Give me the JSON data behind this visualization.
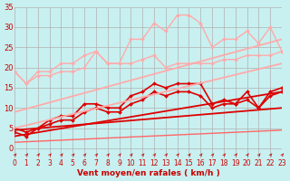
{
  "bg_color": "#c8f0f0",
  "grid_color": "#b0b0b0",
  "xlabel": "Vent moyen/en rafales ( km/h )",
  "xlim": [
    0,
    23
  ],
  "ylim": [
    0,
    35
  ],
  "yticks": [
    0,
    5,
    10,
    15,
    20,
    25,
    30,
    35
  ],
  "xticks": [
    0,
    1,
    2,
    3,
    4,
    5,
    6,
    7,
    8,
    9,
    10,
    11,
    12,
    13,
    14,
    15,
    16,
    17,
    18,
    19,
    20,
    21,
    22,
    23
  ],
  "lines": [
    {
      "x": [
        0,
        1,
        2,
        3,
        4,
        5,
        6,
        7,
        8,
        9,
        10,
        11,
        12,
        13,
        14,
        15,
        16,
        17,
        18,
        19,
        20,
        21,
        22,
        23
      ],
      "y": [
        19,
        16,
        19,
        19,
        21,
        21,
        23,
        24,
        21,
        21,
        27,
        27,
        31,
        29,
        33,
        33,
        31,
        25,
        27,
        27,
        29,
        26,
        30,
        24
      ],
      "color": "#ffaaaa",
      "lw": 1.0,
      "marker": "D",
      "ms": 2.0
    },
    {
      "x": [
        0,
        1,
        2,
        3,
        4,
        5,
        6,
        7,
        8,
        9,
        10,
        11,
        12,
        13,
        14,
        15,
        16,
        17,
        18,
        19,
        20,
        21,
        22,
        23
      ],
      "y": [
        19,
        16,
        18,
        18,
        19,
        19,
        20,
        24,
        21,
        21,
        21,
        22,
        23,
        20,
        21,
        21,
        21,
        21,
        22,
        22,
        23,
        23,
        23,
        24
      ],
      "color": "#ffaaaa",
      "lw": 1.0,
      "marker": "D",
      "ms": 2.0
    },
    {
      "x": [
        0,
        1,
        2,
        3,
        4,
        5,
        6,
        7,
        8,
        9,
        10,
        11,
        12,
        13,
        14,
        15,
        16,
        17,
        18,
        19,
        20,
        21,
        22,
        23
      ],
      "y": [
        5,
        4,
        5,
        7,
        8,
        8,
        11,
        11,
        10,
        10,
        13,
        14,
        16,
        15,
        16,
        16,
        16,
        11,
        12,
        11,
        14,
        10,
        14,
        15
      ],
      "color": "#dd0000",
      "lw": 1.2,
      "marker": "D",
      "ms": 2.0
    },
    {
      "x": [
        0,
        1,
        2,
        3,
        4,
        5,
        6,
        7,
        8,
        9,
        10,
        11,
        12,
        13,
        14,
        15,
        16,
        17,
        18,
        19,
        20,
        21,
        22,
        23
      ],
      "y": [
        4,
        3,
        5,
        6,
        7,
        7,
        9,
        10,
        9,
        9,
        11,
        12,
        14,
        13,
        14,
        14,
        13,
        10,
        11,
        11,
        12,
        10,
        13,
        14
      ],
      "color": "#dd0000",
      "lw": 1.2,
      "marker": "D",
      "ms": 2.0
    },
    {
      "x": [
        0,
        23
      ],
      "y": [
        9,
        27
      ],
      "color": "#ffaaaa",
      "lw": 1.3,
      "marker": null,
      "ms": 0
    },
    {
      "x": [
        0,
        23
      ],
      "y": [
        5,
        21
      ],
      "color": "#ffaaaa",
      "lw": 1.3,
      "marker": null,
      "ms": 0
    },
    {
      "x": [
        0,
        23
      ],
      "y": [
        3,
        14
      ],
      "color": "#dd0000",
      "lw": 1.3,
      "marker": null,
      "ms": 0
    },
    {
      "x": [
        0,
        23
      ],
      "y": [
        4.5,
        10
      ],
      "color": "#dd0000",
      "lw": 1.3,
      "marker": null,
      "ms": 0
    },
    {
      "x": [
        0,
        23
      ],
      "y": [
        1.5,
        4.5
      ],
      "color": "#ff6666",
      "lw": 1.0,
      "marker": null,
      "ms": 0
    }
  ],
  "arrow_color": "#cc0000",
  "tick_color": "#cc0000",
  "xlabel_color": "#cc0000",
  "tick_fontsize": 5.5,
  "xlabel_fontsize": 6.5
}
